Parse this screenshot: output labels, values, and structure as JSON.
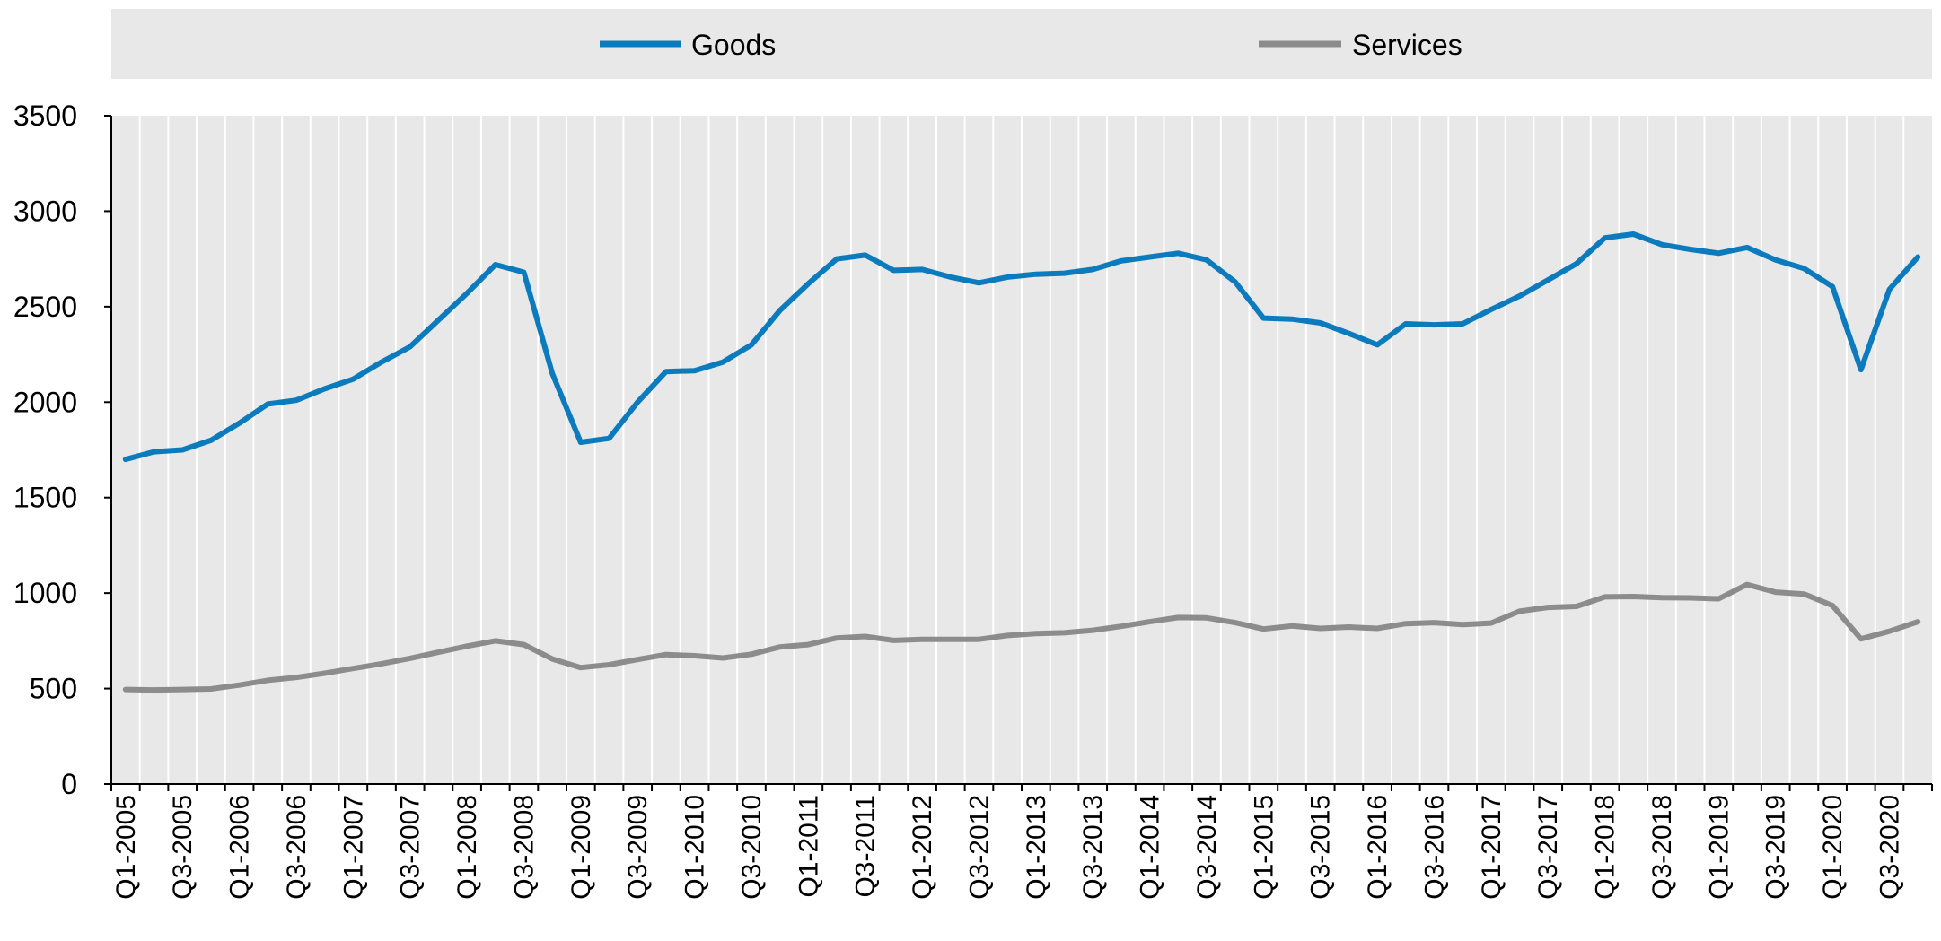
{
  "chart_data": {
    "type": "line",
    "title": "",
    "xlabel": "",
    "ylabel": "",
    "ylim": [
      0,
      3500
    ],
    "yticks": [
      0,
      500,
      1000,
      1500,
      2000,
      2500,
      3000,
      3500
    ],
    "grid": "vertical",
    "legend_position": "top",
    "x": [
      "Q1-2005",
      "Q2-2005",
      "Q3-2005",
      "Q4-2005",
      "Q1-2006",
      "Q2-2006",
      "Q3-2006",
      "Q4-2006",
      "Q1-2007",
      "Q2-2007",
      "Q3-2007",
      "Q4-2007",
      "Q1-2008",
      "Q2-2008",
      "Q3-2008",
      "Q4-2008",
      "Q1-2009",
      "Q2-2009",
      "Q3-2009",
      "Q4-2009",
      "Q1-2010",
      "Q2-2010",
      "Q3-2010",
      "Q4-2010",
      "Q1-2011",
      "Q2-2011",
      "Q3-2011",
      "Q4-2011",
      "Q1-2012",
      "Q2-2012",
      "Q3-2012",
      "Q4-2012",
      "Q1-2013",
      "Q2-2013",
      "Q3-2013",
      "Q4-2013",
      "Q1-2014",
      "Q2-2014",
      "Q3-2014",
      "Q4-2014",
      "Q1-2015",
      "Q2-2015",
      "Q3-2015",
      "Q4-2015",
      "Q1-2016",
      "Q2-2016",
      "Q3-2016",
      "Q4-2016",
      "Q1-2017",
      "Q2-2017",
      "Q3-2017",
      "Q4-2017",
      "Q1-2018",
      "Q2-2018",
      "Q3-2018",
      "Q4-2018",
      "Q1-2019",
      "Q2-2019",
      "Q3-2019",
      "Q4-2019",
      "Q1-2020",
      "Q2-2020",
      "Q3-2020",
      "Q4-2020"
    ],
    "x_tick_labels": [
      "Q1-2005",
      "Q3-2005",
      "Q1-2006",
      "Q3-2006",
      "Q1-2007",
      "Q3-2007",
      "Q1-2008",
      "Q3-2008",
      "Q1-2009",
      "Q3-2009",
      "Q1-2010",
      "Q3-2010",
      "Q1-2011",
      "Q3-2011",
      "Q1-2012",
      "Q3-2012",
      "Q1-2013",
      "Q3-2013",
      "Q1-2014",
      "Q3-2014",
      "Q1-2015",
      "Q3-2015",
      "Q1-2016",
      "Q3-2016",
      "Q1-2017",
      "Q3-2017",
      "Q1-2018",
      "Q3-2018",
      "Q1-2019",
      "Q3-2019",
      "Q1-2020",
      "Q3-2020"
    ],
    "series": [
      {
        "name": "Goods",
        "color": "#0C7BBD",
        "values": [
          1700,
          1740,
          1750,
          1800,
          1890,
          1990,
          2010,
          2070,
          2120,
          2210,
          2290,
          2430,
          2570,
          2720,
          2680,
          2150,
          1790,
          1810,
          2000,
          2160,
          2165,
          2210,
          2300,
          2480,
          2620,
          2750,
          2770,
          2690,
          2695,
          2655,
          2625,
          2655,
          2670,
          2675,
          2695,
          2740,
          2760,
          2780,
          2745,
          2630,
          2440,
          2435,
          2415,
          2360,
          2300,
          2410,
          2405,
          2410,
          2485,
          2555,
          2640,
          2725,
          2860,
          2880,
          2825,
          2800,
          2780,
          2810,
          2745,
          2700,
          2605,
          2170,
          2590,
          2760
        ]
      },
      {
        "name": "Services",
        "color": "#8C8C8C",
        "values": [
          495,
          493,
          495,
          498,
          518,
          543,
          558,
          580,
          605,
          630,
          658,
          690,
          722,
          750,
          730,
          655,
          610,
          625,
          652,
          678,
          672,
          660,
          680,
          718,
          730,
          765,
          773,
          752,
          758,
          758,
          758,
          778,
          788,
          792,
          805,
          826,
          850,
          872,
          870,
          845,
          812,
          828,
          815,
          822,
          815,
          840,
          845,
          835,
          843,
          905,
          925,
          930,
          980,
          982,
          976,
          975,
          970,
          1045,
          1005,
          995,
          935,
          760,
          800,
          850
        ]
      }
    ]
  }
}
